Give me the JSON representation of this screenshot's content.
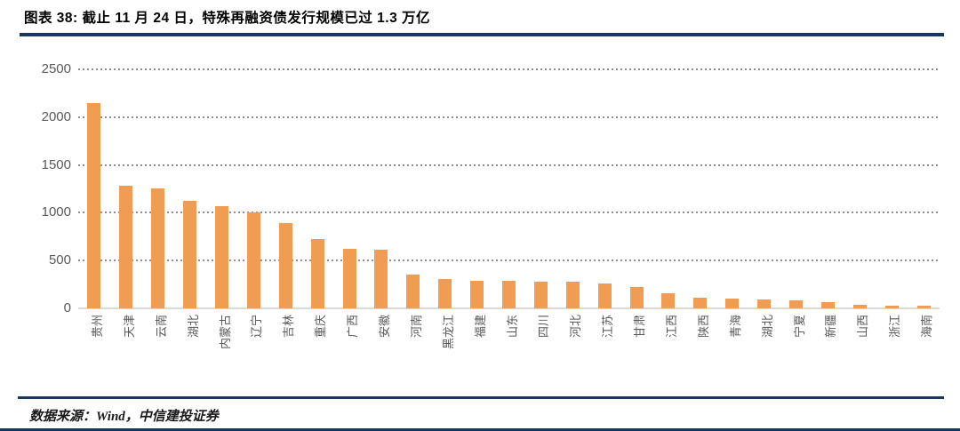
{
  "header": {
    "title": "图表 38: 截止 11 月 24 日，特殊再融资债发行规模已过 1.3 万亿"
  },
  "footer": {
    "source": "数据来源：Wind，中信建投证券"
  },
  "colors": {
    "rule_navy": "#17375e",
    "bar_orange": "#f09c52",
    "axis_text_gray": "#595959",
    "gridline_gray": "#8f8f8f",
    "baseline_gray": "#d9d9d9"
  },
  "chart_data": {
    "type": "bar",
    "title": "图表 38: 截止 11 月 24 日，特殊再融资债发行规模已过 1.3 万亿",
    "xlabel": "",
    "ylabel": "",
    "ylim": [
      0,
      2500
    ],
    "yticks": [
      0,
      500,
      1000,
      1500,
      2000,
      2500
    ],
    "grid": "horizontal-dotted",
    "legend": "none",
    "categories": [
      "贵州",
      "天津",
      "云南",
      "湖北",
      "内蒙古",
      "辽宁",
      "吉林",
      "重庆",
      "广西",
      "安徽",
      "河南",
      "黑龙江",
      "福建",
      "山东",
      "四川",
      "河北",
      "江苏",
      "甘肃",
      "江西",
      "陕西",
      "青海",
      "湖北",
      "宁夏",
      "新疆",
      "山西",
      "浙江",
      "海南"
    ],
    "values": [
      2148,
      1286,
      1256,
      1122,
      1067,
      1006,
      892,
      726,
      623,
      618,
      350,
      303,
      287,
      285,
      283,
      277,
      261,
      222,
      158,
      110,
      100,
      96,
      85,
      65,
      35,
      28,
      27
    ]
  }
}
